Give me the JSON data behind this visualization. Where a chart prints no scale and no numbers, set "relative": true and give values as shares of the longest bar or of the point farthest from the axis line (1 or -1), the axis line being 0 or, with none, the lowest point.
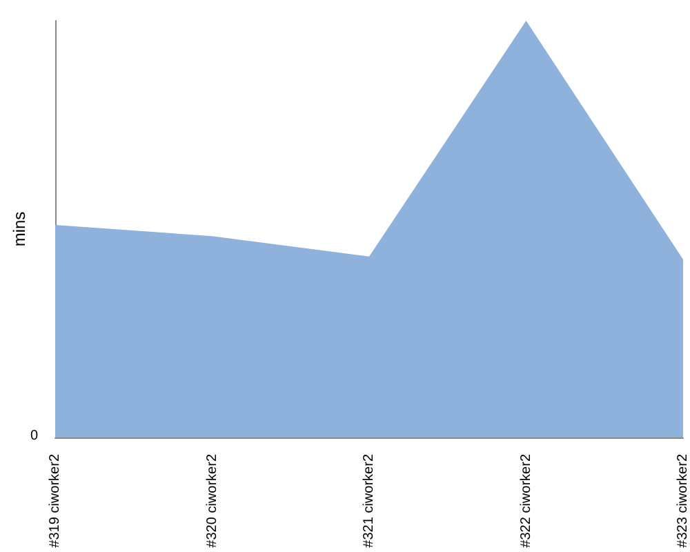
{
  "chart_data": {
    "type": "area",
    "ylabel": "mins",
    "relative": true,
    "annotations": [
      "0"
    ],
    "categories": [
      "#319 ciworker2",
      "#320 ciworker2",
      "#321 ciworker2",
      "#322 ciworker2",
      "#323 ciworker2"
    ],
    "values": [
      0.51,
      0.483,
      0.434,
      1,
      0.427
    ],
    "color": "#8eb2db",
    "grid": false
  }
}
